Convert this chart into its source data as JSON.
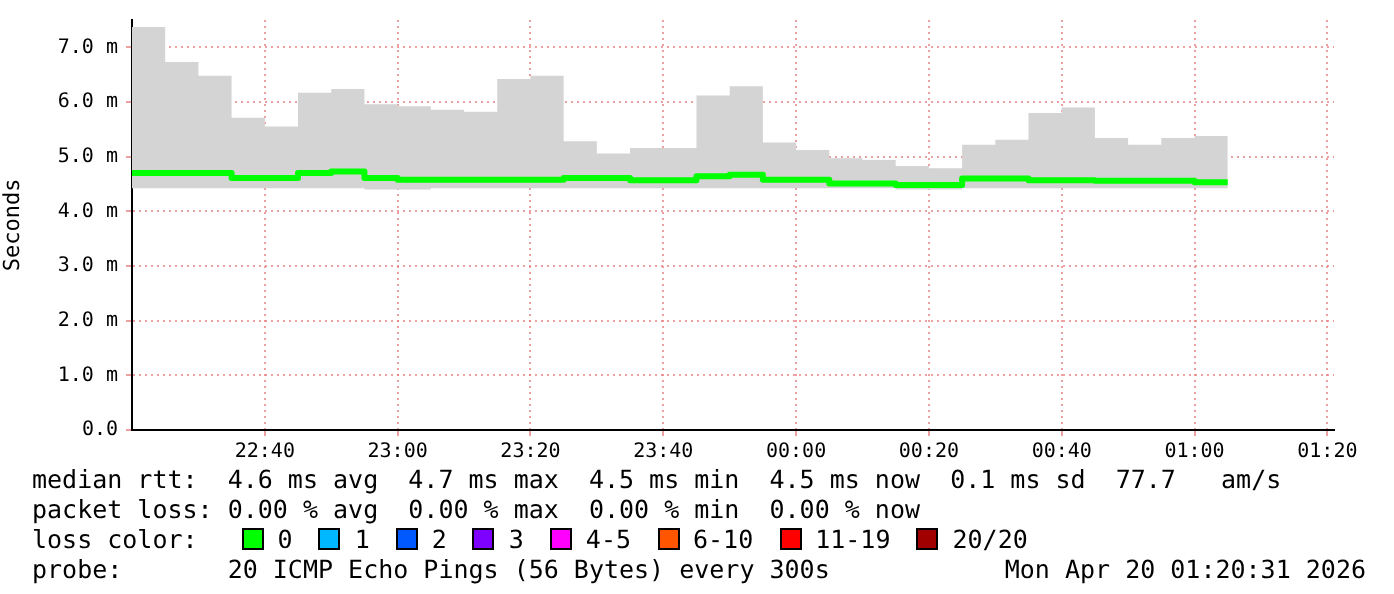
{
  "chart_data": {
    "type": "step",
    "ylabel": "Seconds",
    "legend_title": "loss color:",
    "legend": "bottom",
    "grid": true,
    "xlim": [
      "2026-04-19T22:20",
      "2026-04-20T01:21"
    ],
    "xticks": [
      {
        "value": "2026-04-19T22:40",
        "label": "22:40"
      },
      {
        "value": "2026-04-19T23:00",
        "label": "23:00"
      },
      {
        "value": "2026-04-19T23:20",
        "label": "23:20"
      },
      {
        "value": "2026-04-19T23:40",
        "label": "23:40"
      },
      {
        "value": "2026-04-20T00:00",
        "label": "00:00"
      },
      {
        "value": "2026-04-20T00:20",
        "label": "00:20"
      },
      {
        "value": "2026-04-20T00:40",
        "label": "00:40"
      },
      {
        "value": "2026-04-20T01:00",
        "label": "01:00"
      },
      {
        "value": "2026-04-20T01:20",
        "label": "01:20"
      }
    ],
    "ylim": [
      0,
      7.5
    ],
    "yticks": [
      {
        "value": 0,
        "label": "0.0"
      },
      {
        "value": 1,
        "label": "1.0 m"
      },
      {
        "value": 2,
        "label": "2.0 m"
      },
      {
        "value": 3,
        "label": "3.0 m"
      },
      {
        "value": 4,
        "label": "4.0 m"
      },
      {
        "value": 5,
        "label": "5.0 m"
      },
      {
        "value": 6,
        "label": "6.0 m"
      },
      {
        "value": 7,
        "label": "7.0 m"
      }
    ],
    "x": [
      "2026-04-19T22:20",
      "2026-04-19T22:25",
      "2026-04-19T22:30",
      "2026-04-19T22:35",
      "2026-04-19T22:40",
      "2026-04-19T22:45",
      "2026-04-19T22:50",
      "2026-04-19T22:55",
      "2026-04-19T23:00",
      "2026-04-19T23:05",
      "2026-04-19T23:10",
      "2026-04-19T23:15",
      "2026-04-19T23:20",
      "2026-04-19T23:25",
      "2026-04-19T23:30",
      "2026-04-19T23:35",
      "2026-04-19T23:40",
      "2026-04-19T23:45",
      "2026-04-19T23:50",
      "2026-04-19T23:55",
      "2026-04-20T00:00",
      "2026-04-20T00:05",
      "2026-04-20T00:10",
      "2026-04-20T00:15",
      "2026-04-20T00:20",
      "2026-04-20T00:25",
      "2026-04-20T00:30",
      "2026-04-20T00:35",
      "2026-04-20T00:40",
      "2026-04-20T00:45",
      "2026-04-20T00:50",
      "2026-04-20T00:55",
      "2026-04-20T01:00",
      "2026-04-20T01:05"
    ],
    "series": [
      {
        "name": "0",
        "color": "#00ff00",
        "values": [
          4.7,
          4.7,
          4.7,
          4.7,
          4.61,
          4.61,
          4.7,
          4.73,
          4.61,
          4.58,
          4.58,
          4.58,
          4.58,
          4.58,
          4.61,
          4.61,
          4.57,
          4.57,
          4.64,
          4.67,
          4.58,
          4.58,
          4.51,
          4.51,
          4.48,
          4.48,
          4.6,
          4.6,
          4.57,
          4.57,
          4.56,
          4.56,
          4.56,
          4.53
        ],
        "lower": [
          4.42,
          4.42,
          4.42,
          4.42,
          4.42,
          4.42,
          4.42,
          4.42,
          4.4,
          4.4,
          4.42,
          4.42,
          4.42,
          4.42,
          4.42,
          4.42,
          4.42,
          4.42,
          4.42,
          4.42,
          4.42,
          4.42,
          4.42,
          4.42,
          4.4,
          4.4,
          4.42,
          4.42,
          4.42,
          4.42,
          4.42,
          4.42,
          4.42,
          4.42
        ],
        "upper": [
          7.37,
          7.37,
          6.73,
          6.48,
          5.71,
          5.55,
          6.17,
          6.24,
          5.96,
          5.92,
          5.86,
          5.82,
          6.42,
          6.48,
          5.28,
          5.06,
          5.16,
          5.16,
          6.12,
          6.29,
          5.26,
          5.12,
          4.97,
          4.94,
          4.83,
          4.79,
          5.22,
          5.31,
          5.8,
          5.9,
          5.34,
          5.22,
          5.34,
          5.38
        ]
      },
      {
        "name": "1",
        "color": "#00b8ff",
        "values": [
          null,
          null,
          null,
          null,
          null,
          null,
          null,
          null,
          null,
          null,
          null,
          null,
          null,
          null,
          null,
          null,
          null,
          null,
          null,
          null,
          null,
          null,
          null,
          null,
          null,
          null,
          null,
          null,
          null,
          null,
          null,
          null,
          null,
          null
        ]
      },
      {
        "name": "2",
        "color": "#0059ff",
        "values": [
          null,
          null,
          null,
          null,
          null,
          null,
          null,
          null,
          null,
          null,
          null,
          null,
          null,
          null,
          null,
          null,
          null,
          null,
          null,
          null,
          null,
          null,
          null,
          null,
          null,
          null,
          null,
          null,
          null,
          null,
          null,
          null,
          null,
          null
        ]
      },
      {
        "name": "3",
        "color": "#7e00ff",
        "values": [
          null,
          null,
          null,
          null,
          null,
          null,
          null,
          null,
          null,
          null,
          null,
          null,
          null,
          null,
          null,
          null,
          null,
          null,
          null,
          null,
          null,
          null,
          null,
          null,
          null,
          null,
          null,
          null,
          null,
          null,
          null,
          null,
          null,
          null
        ]
      },
      {
        "name": "4-5",
        "color": "#ff00ff",
        "values": [
          null,
          null,
          null,
          null,
          null,
          null,
          null,
          null,
          null,
          null,
          null,
          null,
          null,
          null,
          null,
          null,
          null,
          null,
          null,
          null,
          null,
          null,
          null,
          null,
          null,
          null,
          null,
          null,
          null,
          null,
          null,
          null,
          null,
          null
        ]
      },
      {
        "name": "6-10",
        "color": "#ff5500",
        "values": [
          null,
          null,
          null,
          null,
          null,
          null,
          null,
          null,
          null,
          null,
          null,
          null,
          null,
          null,
          null,
          null,
          null,
          null,
          null,
          null,
          null,
          null,
          null,
          null,
          null,
          null,
          null,
          null,
          null,
          null,
          null,
          null,
          null,
          null
        ]
      },
      {
        "name": "11-19",
        "color": "#ff0000",
        "values": [
          null,
          null,
          null,
          null,
          null,
          null,
          null,
          null,
          null,
          null,
          null,
          null,
          null,
          null,
          null,
          null,
          null,
          null,
          null,
          null,
          null,
          null,
          null,
          null,
          null,
          null,
          null,
          null,
          null,
          null,
          null,
          null,
          null,
          null
        ]
      },
      {
        "name": "20/20",
        "color": "#a10000",
        "values": [
          null,
          null,
          null,
          null,
          null,
          null,
          null,
          null,
          null,
          null,
          null,
          null,
          null,
          null,
          null,
          null,
          null,
          null,
          null,
          null,
          null,
          null,
          null,
          null,
          null,
          null,
          null,
          null,
          null,
          null,
          null,
          null,
          null,
          null
        ]
      }
    ],
    "annotations": [
      "median rtt:  4.6 ms avg  4.7 ms max  4.5 ms min  4.5 ms now  0.1 ms sd  77.7   am/s",
      "packet loss: 0.00 % avg  0.00 % max  0.00 % min  0.00 % now",
      "probe:       20 ICMP Echo Pings (56 Bytes) every 300s",
      "Mon Apr 20 01:20:31 2026"
    ]
  }
}
